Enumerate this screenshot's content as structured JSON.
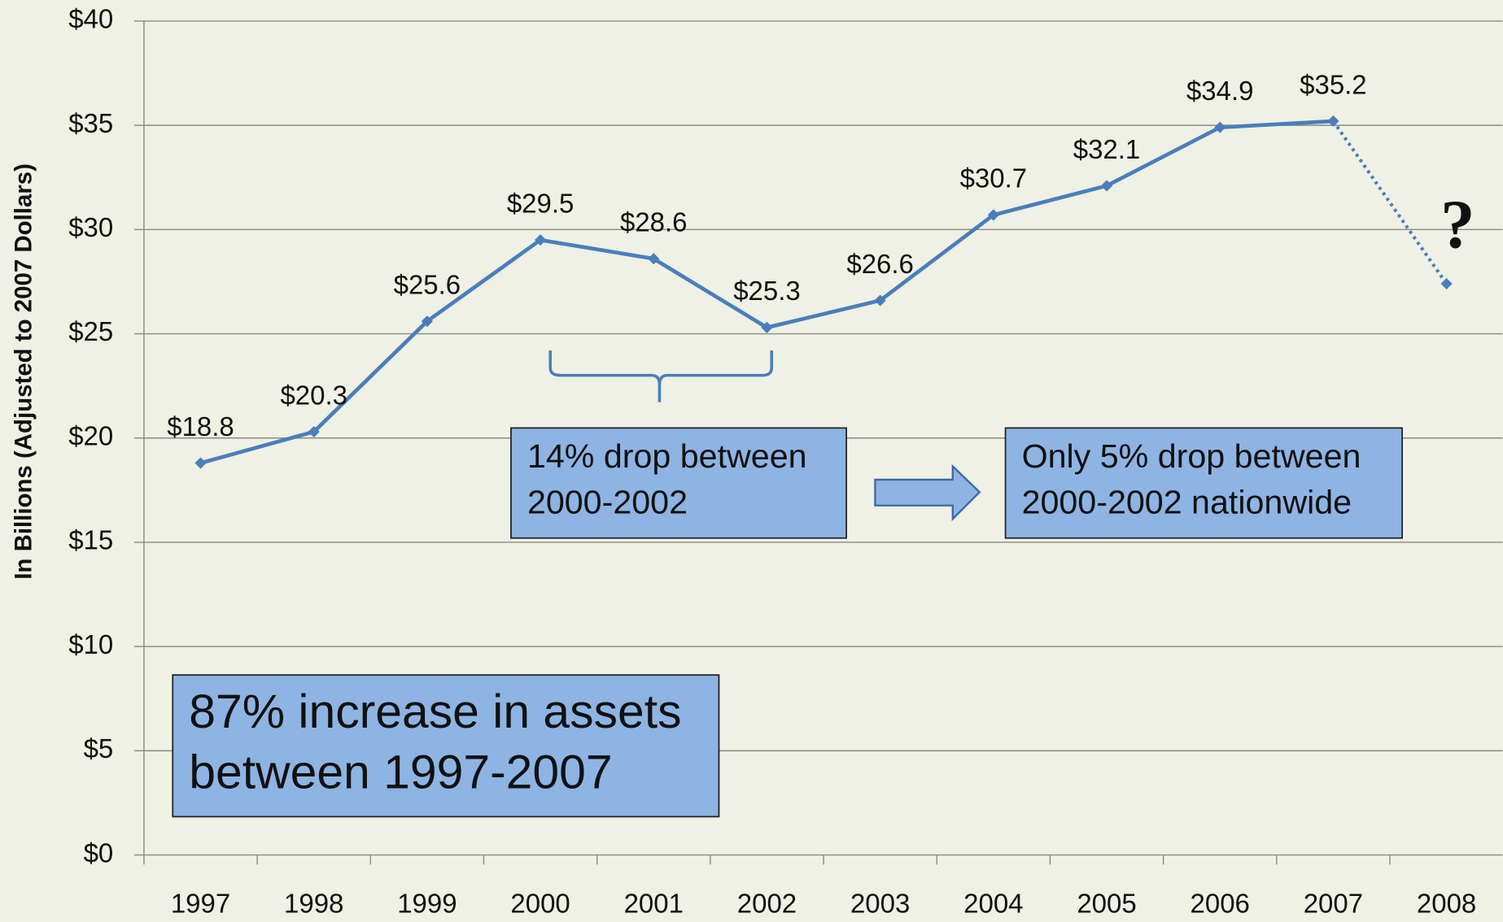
{
  "chart_data": {
    "type": "line",
    "y_axis_label": "In Billions (Adjusted to 2007 Dollars)",
    "categories": [
      "1997",
      "1998",
      "1999",
      "2000",
      "2001",
      "2002",
      "2003",
      "2004",
      "2005",
      "2006",
      "2007",
      "2008"
    ],
    "series": [
      {
        "color": "#4a7ebb",
        "values": [
          18.8,
          20.3,
          25.6,
          29.5,
          28.6,
          25.3,
          26.6,
          30.7,
          32.1,
          34.9,
          35.2,
          27.4
        ],
        "value_labels": [
          "$18.8",
          "$20.3",
          "$25.6",
          "$29.5",
          "$28.6",
          "$25.3",
          "$26.6",
          "$30.7",
          "$32.1",
          "$34.9",
          "$35.2",
          null
        ],
        "dotted_segments": [
          10
        ]
      }
    ],
    "ylim": [
      0,
      40
    ],
    "yticks": [
      {
        "value": 0,
        "label": "$0"
      },
      {
        "value": 5,
        "label": "$5"
      },
      {
        "value": 10,
        "label": "$10"
      },
      {
        "value": 15,
        "label": "$15"
      },
      {
        "value": 20,
        "label": "$20"
      },
      {
        "value": 25,
        "label": "$25"
      },
      {
        "value": 30,
        "label": "$30"
      },
      {
        "value": 35,
        "label": "$35"
      },
      {
        "value": 40,
        "label": "$40"
      }
    ],
    "grid": true,
    "annotations": [
      [
        "14% drop between",
        "2000-2002"
      ],
      [
        "Only 5% drop between",
        "2000-2002 nationwide"
      ],
      [
        "87% increase in assets",
        "between 1997-2007"
      ],
      "?"
    ]
  }
}
